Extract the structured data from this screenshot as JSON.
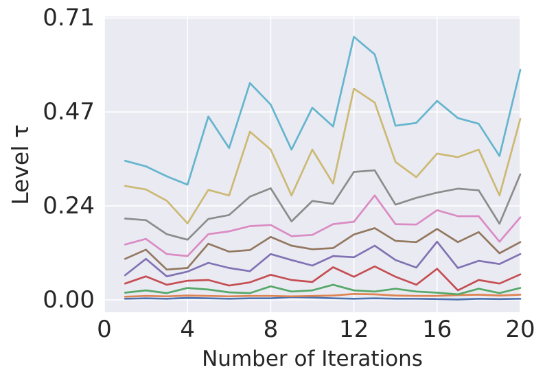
{
  "figure": {
    "background": "#ffffff",
    "plot_background": "#eaeaf2",
    "grid_color": "#ffffff",
    "text_color": "#262626"
  },
  "chart_data": {
    "type": "line",
    "title": "",
    "xlabel": "Number of Iterations",
    "ylabel": "Level τ",
    "grid": true,
    "legend_position": "none",
    "xlim": [
      0,
      20
    ],
    "ylim": [
      -0.031,
      0.711
    ],
    "x_ticks": {
      "values": [
        0,
        4,
        8,
        12,
        16,
        20
      ],
      "labels": [
        "0",
        "4",
        "8",
        "12",
        "16",
        "20"
      ]
    },
    "y_ticks": {
      "values": [
        0.0,
        0.2357,
        0.4714,
        0.7071
      ],
      "labels": [
        "0.00",
        "0.24",
        "0.47",
        "0.71"
      ]
    },
    "x": [
      1,
      2,
      3,
      4,
      5,
      6,
      7,
      8,
      9,
      10,
      11,
      12,
      13,
      14,
      15,
      16,
      17,
      18,
      19,
      20
    ],
    "series": [
      {
        "name": "blue",
        "color": "#4C72B0",
        "values": [
          0.003,
          0.004,
          0.003,
          0.005,
          0.004,
          0.003,
          0.004,
          0.004,
          0.007,
          0.006,
          0.004,
          0.003,
          0.004,
          0.003,
          0.003,
          0.002,
          0.001,
          0.003,
          0.002,
          0.003
        ]
      },
      {
        "name": "orange",
        "color": "#DD8452",
        "values": [
          0.008,
          0.01,
          0.009,
          0.011,
          0.01,
          0.009,
          0.01,
          0.01,
          0.009,
          0.01,
          0.011,
          0.015,
          0.014,
          0.011,
          0.01,
          0.01,
          0.012,
          0.013,
          0.011,
          0.013
        ]
      },
      {
        "name": "green",
        "color": "#55A868",
        "values": [
          0.018,
          0.024,
          0.017,
          0.03,
          0.026,
          0.019,
          0.017,
          0.034,
          0.021,
          0.024,
          0.038,
          0.024,
          0.021,
          0.028,
          0.021,
          0.018,
          0.014,
          0.028,
          0.017,
          0.03
        ]
      },
      {
        "name": "red",
        "color": "#C44E52",
        "values": [
          0.041,
          0.059,
          0.038,
          0.048,
          0.05,
          0.036,
          0.044,
          0.063,
          0.05,
          0.045,
          0.082,
          0.058,
          0.084,
          0.058,
          0.038,
          0.078,
          0.024,
          0.05,
          0.041,
          0.064
        ]
      },
      {
        "name": "purple",
        "color": "#8172B3",
        "values": [
          0.062,
          0.103,
          0.059,
          0.071,
          0.093,
          0.08,
          0.072,
          0.115,
          0.1,
          0.086,
          0.11,
          0.107,
          0.136,
          0.1,
          0.081,
          0.146,
          0.08,
          0.098,
          0.09,
          0.115
        ]
      },
      {
        "name": "brown",
        "color": "#937860",
        "values": [
          0.103,
          0.126,
          0.076,
          0.08,
          0.141,
          0.121,
          0.125,
          0.158,
          0.136,
          0.127,
          0.13,
          0.164,
          0.18,
          0.148,
          0.145,
          0.178,
          0.145,
          0.17,
          0.117,
          0.145
        ]
      },
      {
        "name": "pink",
        "color": "#DA8BC3",
        "values": [
          0.139,
          0.153,
          0.115,
          0.11,
          0.165,
          0.172,
          0.185,
          0.188,
          0.16,
          0.163,
          0.19,
          0.196,
          0.262,
          0.19,
          0.189,
          0.225,
          0.21,
          0.21,
          0.146,
          0.207
        ]
      },
      {
        "name": "gray",
        "color": "#8C8C8C",
        "values": [
          0.204,
          0.2,
          0.165,
          0.151,
          0.203,
          0.213,
          0.259,
          0.28,
          0.197,
          0.248,
          0.241,
          0.321,
          0.325,
          0.239,
          0.256,
          0.269,
          0.279,
          0.275,
          0.191,
          0.315
        ]
      },
      {
        "name": "yellow",
        "color": "#CCB974",
        "values": [
          0.286,
          0.277,
          0.249,
          0.192,
          0.276,
          0.262,
          0.422,
          0.377,
          0.262,
          0.377,
          0.292,
          0.53,
          0.495,
          0.346,
          0.308,
          0.367,
          0.358,
          0.377,
          0.262,
          0.454
        ]
      },
      {
        "name": "cyan",
        "color": "#64B5CD",
        "values": [
          0.349,
          0.335,
          0.31,
          0.289,
          0.46,
          0.381,
          0.544,
          0.49,
          0.377,
          0.482,
          0.435,
          0.66,
          0.616,
          0.437,
          0.444,
          0.499,
          0.456,
          0.442,
          0.361,
          0.577
        ]
      }
    ]
  }
}
